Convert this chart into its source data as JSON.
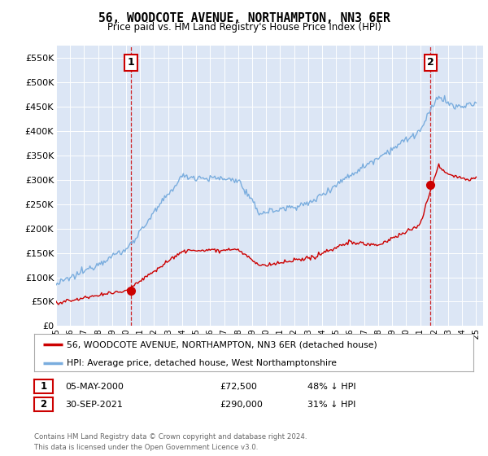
{
  "title": "56, WOODCOTE AVENUE, NORTHAMPTON, NN3 6ER",
  "subtitle": "Price paid vs. HM Land Registry's House Price Index (HPI)",
  "background_color": "#ffffff",
  "plot_bg_color": "#dce6f5",
  "grid_color": "#ffffff",
  "ylabel_ticks": [
    "£0",
    "£50K",
    "£100K",
    "£150K",
    "£200K",
    "£250K",
    "£300K",
    "£350K",
    "£400K",
    "£450K",
    "£500K",
    "£550K"
  ],
  "ytick_values": [
    0,
    50000,
    100000,
    150000,
    200000,
    250000,
    300000,
    350000,
    400000,
    450000,
    500000,
    550000
  ],
  "ylim": [
    0,
    575000
  ],
  "xlim_start": 1995.0,
  "xlim_end": 2025.5,
  "sale1_x": 2000.33,
  "sale1_y": 72500,
  "sale2_x": 2021.75,
  "sale2_y": 290000,
  "sale_color": "#cc0000",
  "hpi_color": "#7aadde",
  "legend_sale_text": "56, WOODCOTE AVENUE, NORTHAMPTON, NN3 6ER (detached house)",
  "legend_hpi_text": "HPI: Average price, detached house, West Northamptonshire",
  "note1_date": "05-MAY-2000",
  "note1_price": "£72,500",
  "note1_hpi": "48% ↓ HPI",
  "note2_date": "30-SEP-2021",
  "note2_price": "£290,000",
  "note2_hpi": "31% ↓ HPI",
  "footer": "Contains HM Land Registry data © Crown copyright and database right 2024.\nThis data is licensed under the Open Government Licence v3.0.",
  "dashed_line_color": "#cc0000",
  "marker_color": "#cc0000",
  "marker_size": 7
}
